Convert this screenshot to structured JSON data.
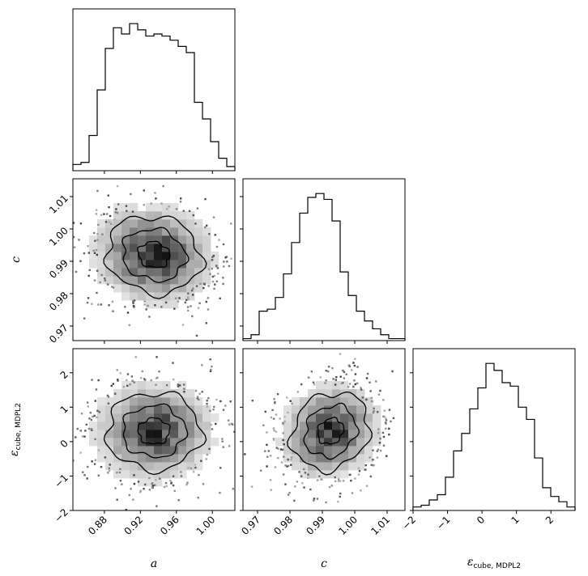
{
  "chart_data": {
    "type": "corner",
    "parameters": [
      {
        "key": "a",
        "label": "a",
        "range": [
          0.845,
          1.025
        ],
        "ticks": [
          0.88,
          0.92,
          0.96,
          1.0
        ]
      },
      {
        "key": "c",
        "label": "c",
        "range": [
          0.9655,
          1.0155
        ],
        "ticks": [
          0.97,
          0.98,
          0.99,
          1.0,
          1.01
        ]
      },
      {
        "key": "eps",
        "label": "ε",
        "label_sub": "cube, MDPL2",
        "range": [
          -2.0,
          2.7
        ],
        "ticks": [
          -2,
          -1,
          0,
          1,
          2
        ]
      }
    ],
    "tick_labels": {
      "a": [
        "0.88",
        "0.92",
        "0.96",
        "1.00"
      ],
      "c": [
        "0.97",
        "0.98",
        "0.99",
        "1.00",
        "1.01"
      ],
      "eps": [
        "−2",
        "−1",
        "0",
        "1",
        "2"
      ]
    },
    "histograms": [
      {
        "param": "a",
        "bins": 20,
        "counts": [
          3,
          4,
          17,
          39,
          59,
          69,
          66,
          71,
          68,
          65,
          66,
          65,
          63,
          60,
          57,
          33,
          25,
          14,
          6,
          2
        ]
      },
      {
        "param": "c",
        "bins": 20,
        "counts": [
          1,
          3,
          15,
          16,
          22,
          34,
          50,
          65,
          73,
          75,
          72,
          61,
          35,
          23,
          15,
          10,
          6,
          3,
          1,
          1
        ]
      },
      {
        "param": "eps",
        "bins": 20,
        "counts": [
          2,
          3,
          6,
          9,
          19,
          34,
          44,
          58,
          70,
          84,
          80,
          73,
          71,
          59,
          52,
          30,
          13,
          8,
          5,
          2
        ]
      }
    ],
    "pairs": [
      {
        "x": "a",
        "y": "c",
        "center": [
          0.935,
          0.992
        ],
        "spread": [
          0.035,
          0.008
        ],
        "corr": -0.1
      },
      {
        "x": "a",
        "y": "eps",
        "center": [
          0.935,
          0.3
        ],
        "spread": [
          0.035,
          0.75
        ],
        "corr": 0.0
      },
      {
        "x": "c",
        "y": "eps",
        "center": [
          0.9925,
          0.3
        ],
        "spread": [
          0.008,
          0.75
        ],
        "corr": 0.15
      }
    ],
    "contour_levels": [
      0.5,
      1.0,
      1.5
    ],
    "grid": false,
    "legend": "none"
  }
}
